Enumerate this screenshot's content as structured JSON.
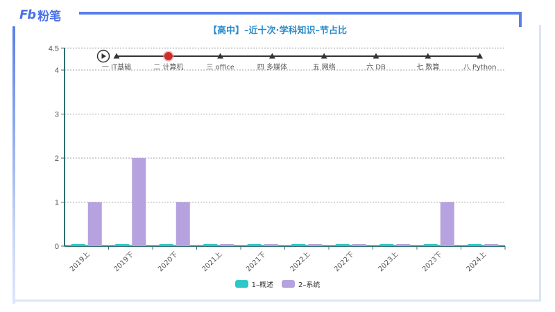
{
  "brand": {
    "logo_mark": "Fb",
    "logo_text": "粉笔",
    "accent": "#5b7fe6"
  },
  "header": {
    "title": "【高中】–近十次·学科知识–节占比"
  },
  "timeline": {
    "play_icon": "play-icon",
    "active_index": 1,
    "items": [
      {
        "label": "一 IT基础"
      },
      {
        "label": "二 计算机"
      },
      {
        "label": "三 office"
      },
      {
        "label": "四 多媒体"
      },
      {
        "label": "五 网络"
      },
      {
        "label": "六 DB"
      },
      {
        "label": "七 数算"
      },
      {
        "label": "八 Python"
      }
    ]
  },
  "legend": [
    {
      "label": "1–概述",
      "color": "#2ec7c9"
    },
    {
      "label": "2–系统",
      "color": "#b6a2de"
    }
  ],
  "chart_data": {
    "type": "bar",
    "title": "【高中】–近十次·学科知识–节占比",
    "xlabel": "",
    "ylabel": "",
    "ylim": [
      0,
      4.5
    ],
    "yticks": [
      0,
      1,
      2,
      3,
      4,
      4.5
    ],
    "grid": true,
    "legend_position": "bottom",
    "categories": [
      "2019上",
      "2019下",
      "2020下",
      "2021上",
      "2021下",
      "2022上",
      "2022下",
      "2023上",
      "2023下",
      "2024上"
    ],
    "series": [
      {
        "name": "1–概述",
        "color": "#2ec7c9",
        "values": [
          0,
          0,
          0,
          0,
          0,
          0,
          0,
          0,
          0,
          0
        ]
      },
      {
        "name": "2–系统",
        "color": "#b6a2de",
        "values": [
          1,
          2,
          1,
          0,
          0,
          0,
          0,
          0,
          1,
          0
        ]
      }
    ]
  }
}
